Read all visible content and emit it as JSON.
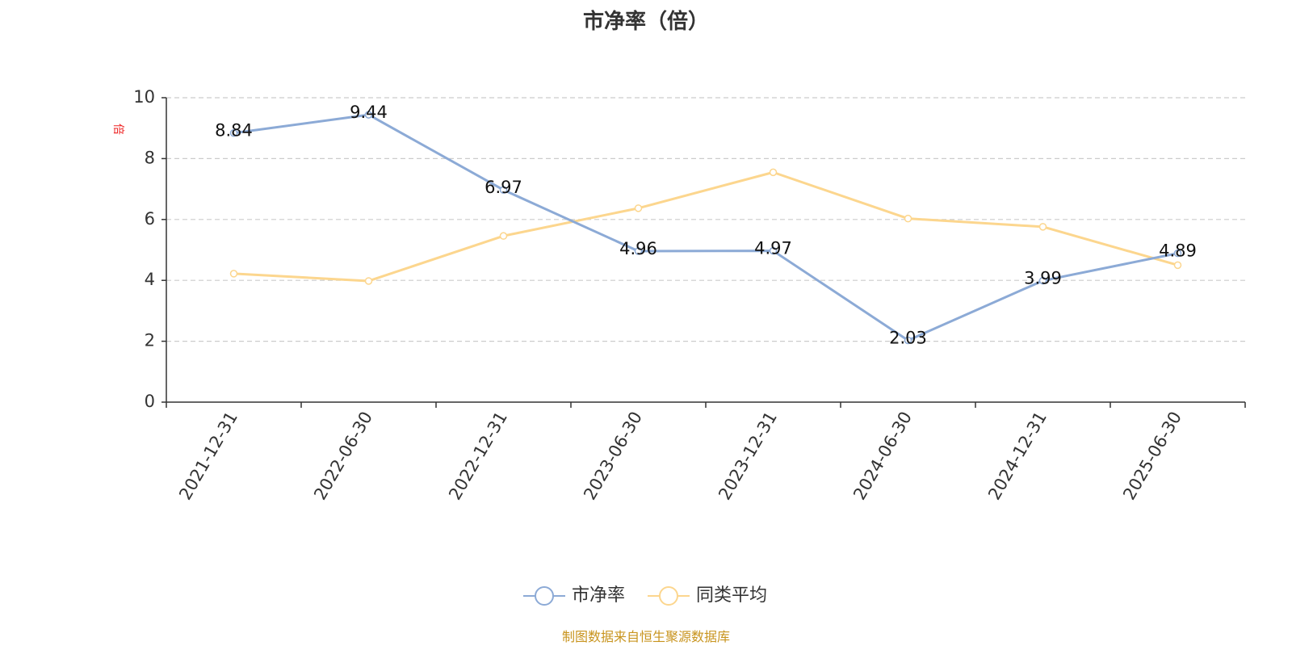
{
  "chart_data": {
    "type": "line",
    "title": "市净率（倍）",
    "ylabel": "倍",
    "ylim": [
      0,
      10
    ],
    "yticks": [
      0,
      2,
      4,
      6,
      8,
      10
    ],
    "grid": true,
    "legend_position": "bottom-center",
    "categories": [
      "2021-12-31",
      "2022-06-30",
      "2022-12-31",
      "2023-06-30",
      "2023-12-31",
      "2024-06-30",
      "2024-12-31",
      "2025-06-30"
    ],
    "series": [
      {
        "name": "市净率",
        "color": "#8caad6",
        "values": [
          8.84,
          9.44,
          6.97,
          4.96,
          4.97,
          2.03,
          3.99,
          4.89
        ],
        "labels": true
      },
      {
        "name": "同类平均",
        "color": "#fcd68e",
        "values": [
          4.22,
          3.98,
          5.46,
          6.37,
          7.55,
          6.03,
          5.76,
          4.5
        ],
        "labels": false
      }
    ],
    "source": "制图数据来自恒生聚源数据库"
  }
}
